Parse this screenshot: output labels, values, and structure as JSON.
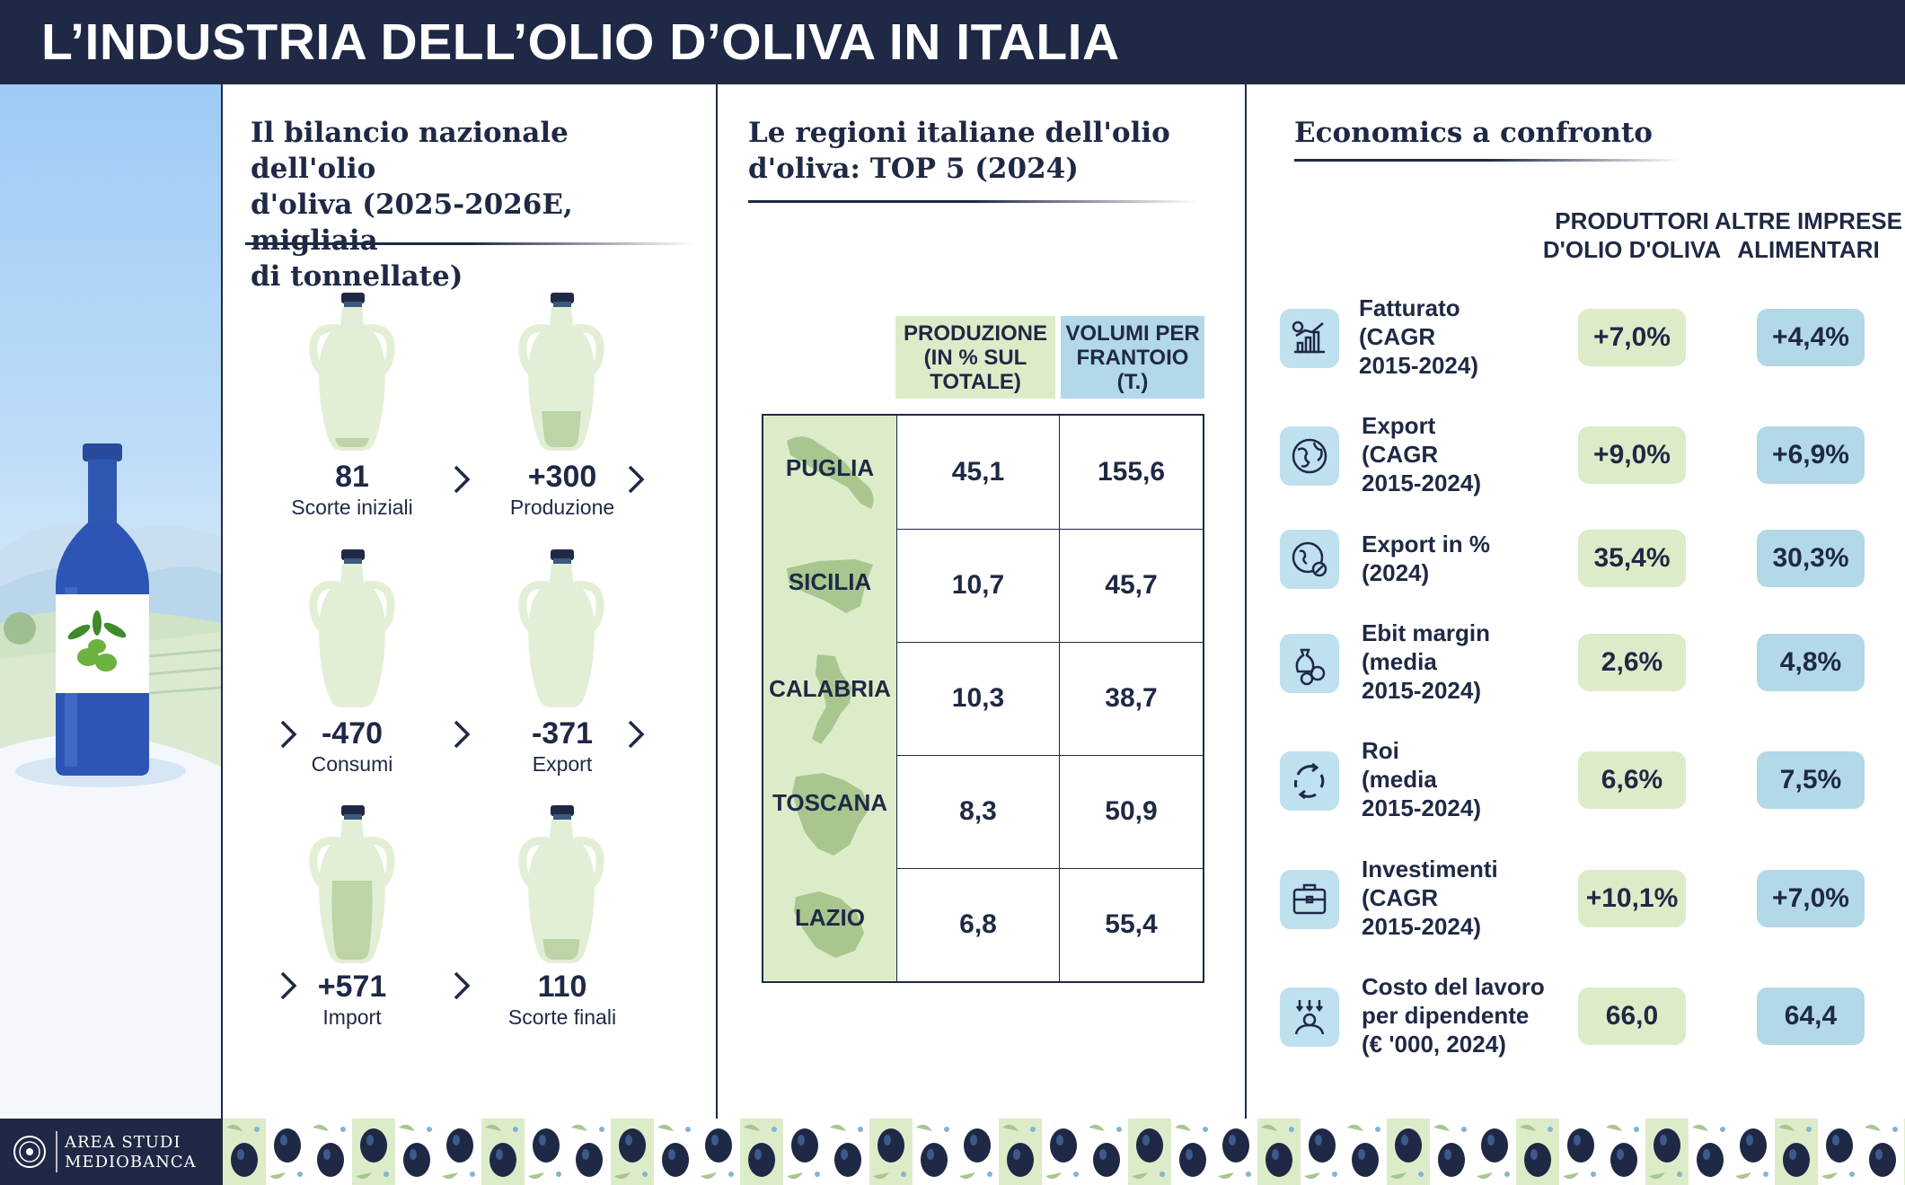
{
  "header": {
    "title": "L’INDUSTRIA DELL’OLIO D’OLIVA IN ITALIA"
  },
  "balance": {
    "title_lines": [
      "Il bilancio nazionale dell'olio",
      "d'oliva (2025-2026E, migliaia",
      "di tonnellate)"
    ],
    "items": [
      {
        "value": "81",
        "label": "Scorte iniziali",
        "fill": 0.1
      },
      {
        "value": "+300",
        "label": "Produzione",
        "fill": 0.38
      },
      {
        "value": "-470",
        "label": "Consumi",
        "fill": 0
      },
      {
        "value": "-371",
        "label": "Export",
        "fill": 0
      },
      {
        "value": "+571",
        "label": "Import",
        "fill": 0.85
      },
      {
        "value": "110",
        "label": "Scorte finali",
        "fill": 0.22
      }
    ]
  },
  "regions": {
    "title_lines": [
      "Le regioni italiane dell'olio",
      "d'oliva: TOP 5 (2024)"
    ],
    "col_production": [
      "PRODUZIONE",
      "(IN % SUL",
      "TOTALE)"
    ],
    "col_volumes": [
      "VOLUMI PER",
      "FRANTOIO",
      "(T.)"
    ],
    "rows": [
      {
        "name": "PUGLIA",
        "production": "45,1",
        "volumes": "155,6"
      },
      {
        "name": "SICILIA",
        "production": "10,7",
        "volumes": "45,7"
      },
      {
        "name": "CALABRIA",
        "production": "10,3",
        "volumes": "38,7"
      },
      {
        "name": "TOSCANA",
        "production": "8,3",
        "volumes": "50,9"
      },
      {
        "name": "LAZIO",
        "production": "6,8",
        "volumes": "55,4"
      }
    ]
  },
  "economics": {
    "title": "Economics a confronto",
    "col_producers": [
      "PRODUTTORI",
      "D'OLIO D'OLIVA"
    ],
    "col_others": [
      "ALTRE IMPRESE",
      "ALIMENTARI"
    ],
    "rows": [
      {
        "icon": "chart-icon",
        "label": [
          "Fatturato",
          "(CAGR",
          "2015-2024)"
        ],
        "producers": "+7,0%",
        "others": "+4,4%"
      },
      {
        "icon": "globe-icon",
        "label": [
          "Export",
          "(CAGR",
          "2015-2024)"
        ],
        "producers": "+9,0%",
        "others": "+6,9%"
      },
      {
        "icon": "globe-percent-icon",
        "label": [
          "Export in %",
          "(2024)"
        ],
        "producers": "35,4%",
        "others": "30,3%"
      },
      {
        "icon": "coins-icon",
        "label": [
          "Ebit margin",
          "(media",
          "2015-2024)"
        ],
        "producers": "2,6%",
        "others": "4,8%"
      },
      {
        "icon": "cycle-icon",
        "label": [
          "Roi",
          "(media",
          "2015-2024)"
        ],
        "producers": "6,6%",
        "others": "7,5%"
      },
      {
        "icon": "briefcase-icon",
        "label": [
          "Investimenti",
          "(CAGR",
          "2015-2024)"
        ],
        "producers": "+10,1%",
        "others": "+7,0%"
      },
      {
        "icon": "worker-cost-icon",
        "label": [
          "Costo del lavoro",
          "per dipendente",
          "(€ '000, 2024)"
        ],
        "producers": "66,0",
        "others": "64,4"
      }
    ]
  },
  "footer": {
    "logo_lines": [
      "AREA STUDI",
      "MEDIOBANCA"
    ]
  },
  "colors": {
    "navy": "#1f2945",
    "olive_light": "#dcecc8",
    "blue_light": "#b3d8e8"
  }
}
